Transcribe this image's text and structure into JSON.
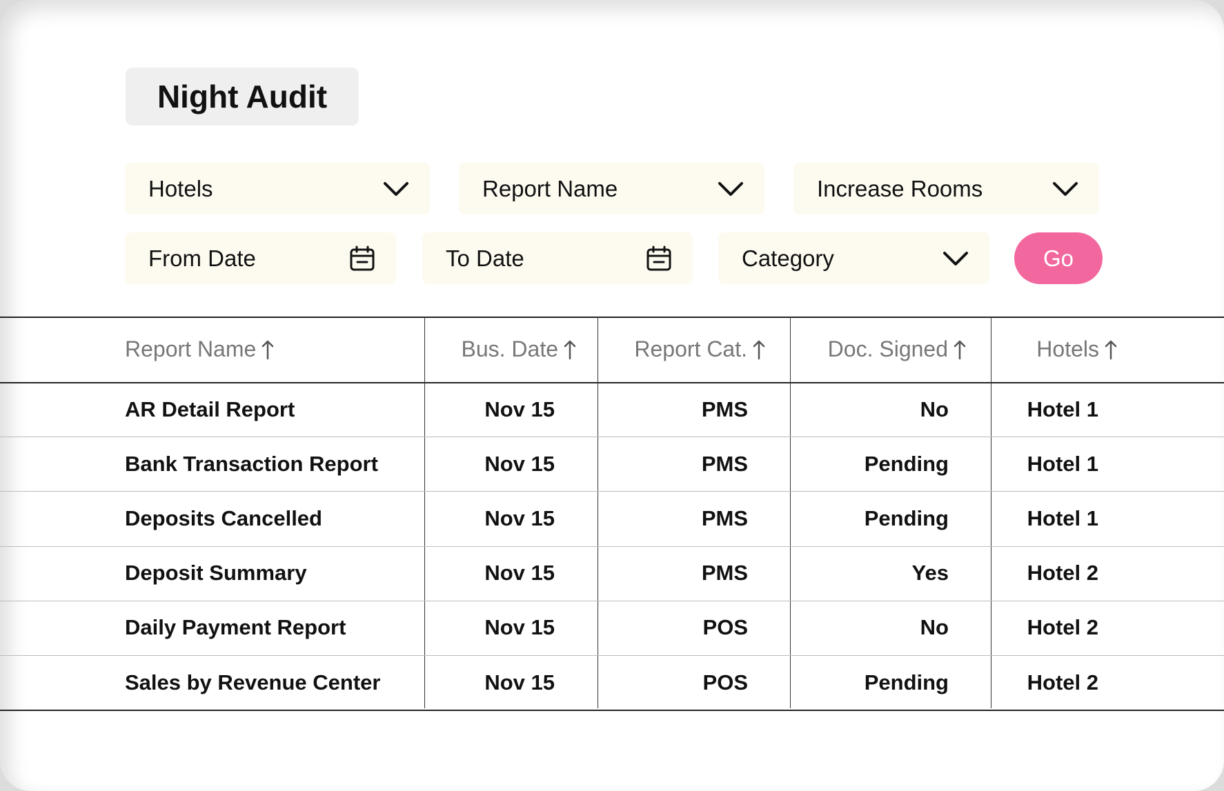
{
  "header": {
    "title": "Night Audit"
  },
  "filters": [
    {
      "label": "Hotels",
      "kind": "dropdown"
    },
    {
      "label": "Report Name",
      "kind": "dropdown"
    },
    {
      "label": "Increase Rooms",
      "kind": "dropdown"
    },
    {
      "label": "From Date",
      "kind": "date"
    },
    {
      "label": "To Date",
      "kind": "date"
    },
    {
      "label": "Category",
      "kind": "dropdown"
    }
  ],
  "go_button": "Go",
  "table": {
    "columns": [
      "Report Name",
      "Bus. Date",
      "Report Cat.",
      "Doc. Signed",
      "Hotels"
    ],
    "rows": [
      [
        "AR Detail Report",
        "Nov 15",
        "PMS",
        "No",
        "Hotel 1"
      ],
      [
        "Bank Transaction Report",
        "Nov 15",
        "PMS",
        "Pending",
        "Hotel 1"
      ],
      [
        "Deposits Cancelled",
        "Nov 15",
        "PMS",
        "Pending",
        "Hotel 1"
      ],
      [
        "Deposit Summary",
        "Nov 15",
        "PMS",
        "Yes",
        "Hotel 2"
      ],
      [
        "Daily Payment Report",
        "Nov 15",
        "POS",
        "No",
        "Hotel 2"
      ],
      [
        "Sales by Revenue Center",
        "Nov 15",
        "POS",
        "Pending",
        "Hotel 2"
      ]
    ]
  }
}
